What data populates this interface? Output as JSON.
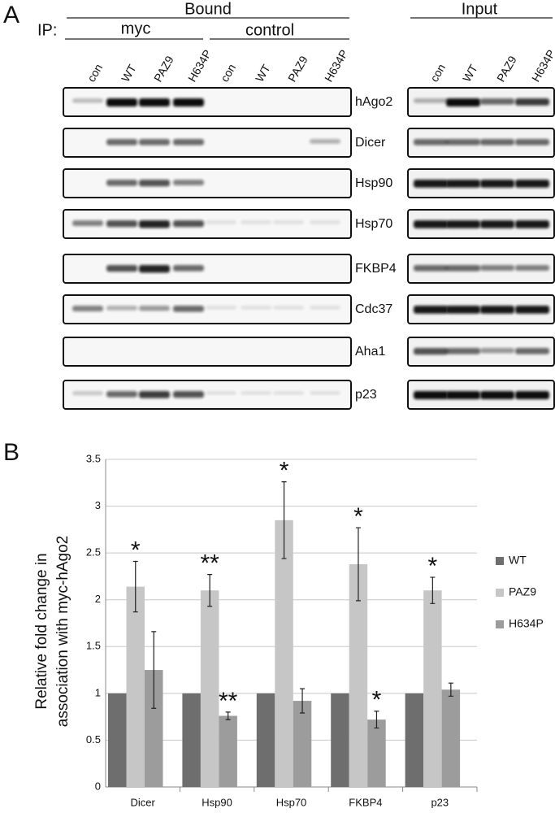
{
  "panel_a": {
    "label": "A",
    "bound": "Bound",
    "ip": "IP:",
    "myc": "myc",
    "control": "control",
    "input": "Input",
    "lanes": [
      "con",
      "WT",
      "PAZ9",
      "H634P",
      "con",
      "WT",
      "PAZ9",
      "H634P"
    ],
    "input_lanes": [
      "con",
      "WT",
      "PAZ9",
      "H634P"
    ],
    "proteins": [
      "hAgo2",
      "Dicer",
      "Hsp90",
      "Hsp70",
      "FKBP4",
      "Cdc37",
      "Aha1",
      "p23"
    ]
  },
  "panel_b": {
    "label": "B"
  },
  "chart_data": {
    "type": "bar",
    "ylabel": [
      "Relative fold change in",
      "association with myc-hAgo2"
    ],
    "categories": [
      "Dicer",
      "Hsp90",
      "Hsp70",
      "FKBP4",
      "p23"
    ],
    "series": [
      {
        "name": "WT",
        "color": "#6e6e6e",
        "values": [
          1,
          1,
          1,
          1,
          1
        ]
      },
      {
        "name": "PAZ9",
        "color": "#c6c6c6",
        "values": [
          2.14,
          2.1,
          2.85,
          2.38,
          2.1
        ],
        "errors": [
          0.27,
          0.17,
          0.41,
          0.39,
          0.14
        ],
        "stars": [
          "*",
          "**",
          "*",
          "*",
          "*"
        ]
      },
      {
        "name": "H634P",
        "color": "#9c9c9c",
        "values": [
          1.25,
          0.76,
          0.92,
          0.72,
          1.04
        ],
        "errors": [
          0.41,
          0.04,
          0.13,
          0.09,
          0.07
        ],
        "stars": [
          null,
          "**",
          null,
          "*",
          null
        ]
      }
    ],
    "ylim": [
      0,
      3.5
    ],
    "yticks": [
      0,
      0.5,
      1,
      1.5,
      2,
      2.5,
      3,
      3.5
    ],
    "grid": true,
    "legend": "right"
  }
}
